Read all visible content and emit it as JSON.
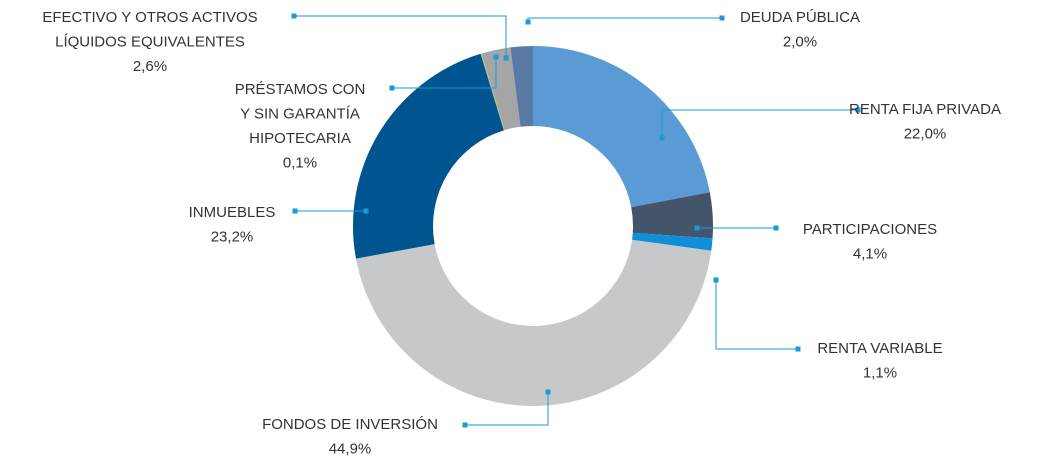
{
  "chart_data": {
    "type": "donut",
    "categories": [
      [
        "RENTA FIJA PRIVADA"
      ],
      [
        "PARTICIPACIONES"
      ],
      [
        "RENTA VARIABLE"
      ],
      [
        "FONDOS DE INVERSIÓN"
      ],
      [
        "INMUEBLES"
      ],
      [
        "PRÉSTAMOS CON",
        "Y SIN GARANTÍA",
        "HIPOTECARIA"
      ],
      [
        "EFECTIVO Y OTROS ACTIVOS",
        "LÍQUIDOS EQUIVALENTES"
      ],
      [
        "DEUDA PÚBLICA"
      ]
    ],
    "values": [
      22.0,
      4.1,
      1.1,
      44.9,
      23.2,
      0.1,
      2.6,
      2.0
    ],
    "value_labels": [
      "22,0%",
      "4,1%",
      "1,1%",
      "44,9%",
      "23,2%",
      "0,1%",
      "2,6%",
      "2,0%"
    ],
    "colors": [
      "#5b9bd5",
      "#44546a",
      "#0f8fd8",
      "#c7c8ca",
      "#00548f",
      "#b5c26f",
      "#a5a5a5",
      "#5a7aa5"
    ]
  }
}
